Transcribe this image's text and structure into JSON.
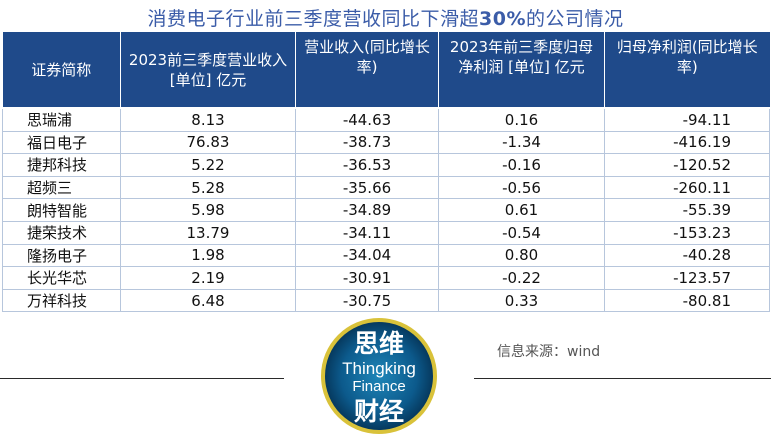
{
  "title": {
    "prefix": "消费电子行业前三季度营收同比下滑超",
    "pct": "30%",
    "suffix": "的公司情况"
  },
  "table": {
    "headers": [
      "证券简称",
      "2023前三季度营业收入[单位] 亿元",
      "营业收入(同比增长率)",
      "2023年前三季度归母净利润 [单位] 亿元",
      "归母净利润(同比增长率)"
    ],
    "rows": [
      [
        "思瑞浦",
        "8.13",
        "-44.63",
        "0.16",
        "-94.11"
      ],
      [
        "福日电子",
        "76.83",
        "-38.73",
        "-1.34",
        "-416.19"
      ],
      [
        "捷邦科技",
        "5.22",
        "-36.53",
        "-0.16",
        "-120.52"
      ],
      [
        "超频三",
        "5.28",
        "-35.66",
        "-0.56",
        "-260.11"
      ],
      [
        "朗特智能",
        "5.98",
        "-34.89",
        "0.61",
        "-55.39"
      ],
      [
        "捷荣技术",
        "13.79",
        "-34.11",
        "-0.54",
        "-153.23"
      ],
      [
        "隆扬电子",
        "1.98",
        "-34.04",
        "0.80",
        "-40.28"
      ],
      [
        "长光华芯",
        "2.19",
        "-30.91",
        "-0.22",
        "-123.57"
      ],
      [
        "万祥科技",
        "6.48",
        "-30.75",
        "0.33",
        "-80.81"
      ]
    ]
  },
  "logo": {
    "cn_top": "思维",
    "en_line1": "Thingking",
    "en_line2": "Finance",
    "cn_bottom": "财经"
  },
  "source": "信息来源：wind",
  "colors": {
    "title": "#3b5ca8",
    "header_bg": "#1f4a8a",
    "logo_bg": "#0c5a8c",
    "logo_ring": "#d9c23a"
  }
}
